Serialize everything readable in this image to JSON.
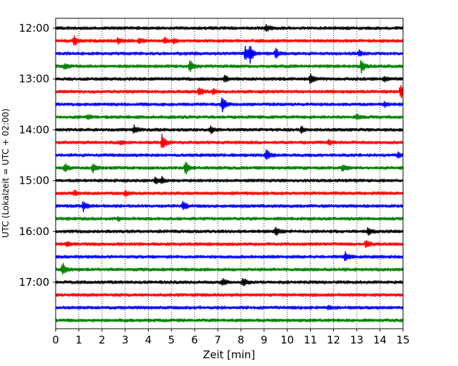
{
  "chart_data": {
    "type": "line",
    "xlabel": "Zeit  [min]",
    "ylabel": "UTC (Lokalzeit = UTC + 02:00)",
    "xlim": [
      0,
      15
    ],
    "x_ticks": [
      "0",
      "1",
      "2",
      "3",
      "4",
      "5",
      "6",
      "7",
      "8",
      "9",
      "10",
      "11",
      "12",
      "13",
      "14",
      "15"
    ],
    "y_tick_labels": [
      "12:00",
      "13:00",
      "14:00",
      "15:00",
      "16:00",
      "17:00"
    ],
    "row_minutes": 15,
    "start_hour_utc": "12:00",
    "grid": "vertical-dotted",
    "trace_colors": [
      "#000000",
      "#ff0000",
      "#0000ff",
      "#008000"
    ],
    "rows": [
      {
        "time": "12:00",
        "color": "#000000",
        "events": [
          {
            "t": 9.1,
            "amp": 0.6
          }
        ]
      },
      {
        "time": "12:15",
        "color": "#ff0000",
        "events": [
          {
            "t": 0.8,
            "amp": 0.8
          },
          {
            "t": 2.7,
            "amp": 0.5
          },
          {
            "t": 3.6,
            "amp": 0.4
          },
          {
            "t": 4.7,
            "amp": 0.5
          },
          {
            "t": 5.1,
            "amp": 0.4
          }
        ]
      },
      {
        "time": "12:30",
        "color": "#0000ff",
        "events": [
          {
            "t": 8.2,
            "amp": 1.3
          },
          {
            "t": 8.4,
            "amp": 1.3
          },
          {
            "t": 9.5,
            "amp": 0.9
          },
          {
            "t": 13.1,
            "amp": 0.5
          }
        ]
      },
      {
        "time": "12:45",
        "color": "#008000",
        "events": [
          {
            "t": 0.4,
            "amp": 0.5
          },
          {
            "t": 5.8,
            "amp": 1.1
          },
          {
            "t": 13.2,
            "amp": 1.2
          }
        ]
      },
      {
        "time": "13:00",
        "color": "#000000",
        "events": [
          {
            "t": 7.3,
            "amp": 0.6
          },
          {
            "t": 11.0,
            "amp": 0.9
          },
          {
            "t": 14.2,
            "amp": 0.4
          }
        ]
      },
      {
        "time": "13:15",
        "color": "#ff0000",
        "events": [
          {
            "t": 6.2,
            "amp": 0.8
          },
          {
            "t": 6.8,
            "amp": 0.5
          },
          {
            "t": 14.9,
            "amp": 1.4
          }
        ]
      },
      {
        "time": "13:30",
        "color": "#0000ff",
        "events": [
          {
            "t": 7.2,
            "amp": 1.4
          },
          {
            "t": 14.2,
            "amp": 0.5
          }
        ]
      },
      {
        "time": "13:45",
        "color": "#008000",
        "events": [
          {
            "t": 1.4,
            "amp": 0.4
          },
          {
            "t": 13.0,
            "amp": 0.5
          }
        ]
      },
      {
        "time": "14:00",
        "color": "#000000",
        "events": [
          {
            "t": 3.4,
            "amp": 0.7
          },
          {
            "t": 6.7,
            "amp": 0.6
          },
          {
            "t": 10.6,
            "amp": 0.6
          }
        ]
      },
      {
        "time": "14:15",
        "color": "#ff0000",
        "events": [
          {
            "t": 4.6,
            "amp": 1.4
          },
          {
            "t": 2.8,
            "amp": 0.4
          },
          {
            "t": 11.8,
            "amp": 0.4
          }
        ]
      },
      {
        "time": "14:30",
        "color": "#0000ff",
        "events": [
          {
            "t": 9.1,
            "amp": 1.0
          },
          {
            "t": 14.8,
            "amp": 0.4
          }
        ]
      },
      {
        "time": "14:45",
        "color": "#008000",
        "events": [
          {
            "t": 0.4,
            "amp": 0.8
          },
          {
            "t": 1.6,
            "amp": 0.8
          },
          {
            "t": 5.6,
            "amp": 1.3
          },
          {
            "t": 12.4,
            "amp": 0.7
          }
        ]
      },
      {
        "time": "15:00",
        "color": "#000000",
        "events": [
          {
            "t": 4.3,
            "amp": 0.7
          },
          {
            "t": 4.6,
            "amp": 0.5
          }
        ]
      },
      {
        "time": "15:15",
        "color": "#ff0000",
        "events": [
          {
            "t": 0.8,
            "amp": 0.5
          },
          {
            "t": 3.0,
            "amp": 0.4
          }
        ]
      },
      {
        "time": "15:30",
        "color": "#0000ff",
        "events": [
          {
            "t": 1.2,
            "amp": 0.8
          },
          {
            "t": 5.5,
            "amp": 0.8
          }
        ]
      },
      {
        "time": "15:45",
        "color": "#008000",
        "events": [
          {
            "t": 2.7,
            "amp": 0.3
          }
        ]
      },
      {
        "time": "16:00",
        "color": "#000000",
        "events": [
          {
            "t": 9.5,
            "amp": 0.8
          },
          {
            "t": 13.5,
            "amp": 0.8
          }
        ]
      },
      {
        "time": "16:15",
        "color": "#ff0000",
        "events": [
          {
            "t": 0.5,
            "amp": 0.4
          },
          {
            "t": 13.4,
            "amp": 0.6
          }
        ]
      },
      {
        "time": "16:30",
        "color": "#0000ff",
        "events": [
          {
            "t": 12.5,
            "amp": 0.9
          }
        ]
      },
      {
        "time": "16:45",
        "color": "#008000",
        "events": [
          {
            "t": 0.3,
            "amp": 1.1
          }
        ]
      },
      {
        "time": "17:00",
        "color": "#000000",
        "events": [
          {
            "t": 7.2,
            "amp": 0.6
          },
          {
            "t": 8.1,
            "amp": 0.7
          }
        ]
      },
      {
        "time": "17:15",
        "color": "#ff0000",
        "events": []
      },
      {
        "time": "17:30",
        "color": "#0000ff",
        "events": [
          {
            "t": 11.8,
            "amp": 0.3
          }
        ]
      },
      {
        "time": "17:45",
        "color": "#008000",
        "events": []
      }
    ]
  }
}
